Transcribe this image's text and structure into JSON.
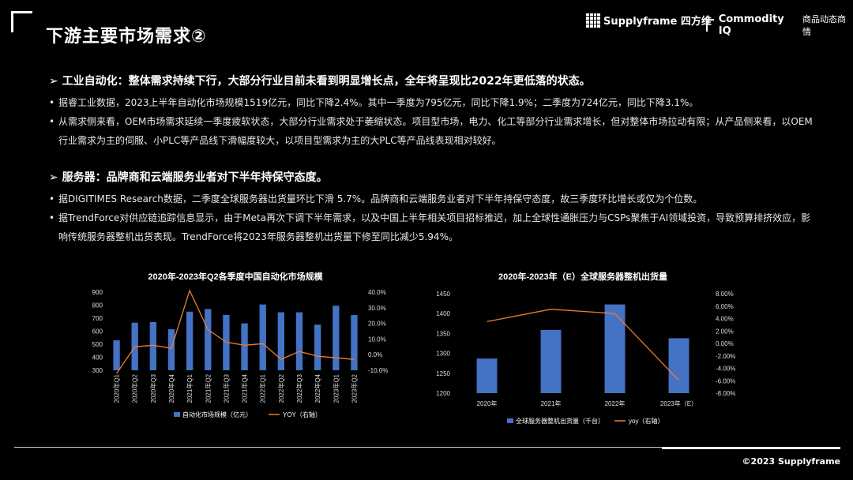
{
  "page": {
    "title": "下游主要市场需求②",
    "brand_supplyframe": "Supplyframe 四方维",
    "brand_commodity": "Commodity IQ",
    "brand_commodity_sub": "商品动态商情",
    "copyright": "©2023 Supplyframe"
  },
  "sections": [
    {
      "heading": "➢  工业自动化：整体需求持续下行，大部分行业目前未看到明显增长点，全年将呈现比2022年更低落的状态。",
      "bullets": [
        "据睿工业数据，2023上半年自动化市场规模1519亿元，同比下降2.4%。其中一季度为795亿元，同比下降1.9%；二季度为724亿元，同比下降3.1%。",
        "从需求侧来看，OEM市场需求延续一季度疲软状态，大部分行业需求处于萎缩状态。项目型市场，电力、化工等部分行业需求增长，但对整体市场拉动有限；从产品侧来看，以OEM行业需求为主的伺服、小PLC等产品线下滑幅度较大，以项目型需求为主的大PLC等产品线表现相对较好。"
      ]
    },
    {
      "heading": "➢  服务器：品牌商和云端服务业者对下半年持保守态度。",
      "bullets": [
        "据DIGITIMES Research数据，二季度全球服务器出货量环比下滑 5.7%。品牌商和云端服务业者对下半年持保守态度，故三季度环比增长或仅为个位数。",
        "据TrendForce对供应链追踪信息显示，由于Meta再次下调下半年需求，以及中国上半年相关项目招标推迟，加上全球性通胀压力与CSPs聚焦于AI领域投资，导致预算排挤效应，影响传统服务器整机出货表现。TrendForce将2023年服务器整机出货量下修至同比减少5.94%。"
      ]
    }
  ],
  "chart_data": [
    {
      "type": "bar",
      "title": "2020年-2023年Q2各季度中国自动化市场规模",
      "categories": [
        "2020年Q1",
        "2020年Q2",
        "2020年Q3",
        "2020年Q4",
        "2021年Q1",
        "2021年Q2",
        "2021年Q3",
        "2021年Q4",
        "2022年Q1",
        "2022年Q2",
        "2022年Q3",
        "2022年Q4",
        "2023年Q1",
        "2023年Q2"
      ],
      "series": [
        {
          "name": "自动化市场规模（亿元）",
          "kind": "bar",
          "axis": "left",
          "color": "#4472C4",
          "values": [
            530,
            665,
            670,
            615,
            750,
            770,
            725,
            660,
            805,
            745,
            745,
            650,
            795,
            724
          ]
        },
        {
          "name": "YOY（右轴）",
          "kind": "line",
          "axis": "right",
          "color": "#ED7D31",
          "values": [
            -12,
            5,
            6,
            4,
            41,
            16,
            8,
            6,
            7,
            -3,
            2,
            -1,
            -2,
            -3.1
          ]
        }
      ],
      "y_left": {
        "min": 300,
        "max": 900,
        "ticks": [
          "300",
          "400",
          "500",
          "600",
          "700",
          "800",
          "900"
        ]
      },
      "y_right": {
        "min": -10,
        "max": 40,
        "ticks": [
          "-10.0%",
          "0.0%",
          "10.0%",
          "20.0%",
          "30.0%",
          "40.0%"
        ]
      },
      "grid": false,
      "legend": "bottom"
    },
    {
      "type": "bar",
      "title": "2020年-2023年（E）全球服务器整机出货量",
      "categories": [
        "2020年",
        "2021年",
        "2022年",
        "2023年（E）"
      ],
      "series": [
        {
          "name": "全球服务器整机出货量（千台）",
          "kind": "bar",
          "axis": "left",
          "color": "#4472C4",
          "values": [
            1287,
            1359,
            1423,
            1338
          ]
        },
        {
          "name": "yoy（右轴）",
          "kind": "line",
          "axis": "right",
          "color": "#ED7D31",
          "values": [
            3.5,
            5.5,
            4.8,
            -5.94
          ]
        }
      ],
      "y_left": {
        "min": 1200,
        "max": 1450,
        "ticks": [
          "1200",
          "1250",
          "1300",
          "1350",
          "1400",
          "1450"
        ]
      },
      "y_right": {
        "min": -8,
        "max": 8,
        "ticks": [
          "-8.00%",
          "-6.00%",
          "-4.00%",
          "-2.00%",
          "0.00%",
          "2.00%",
          "4.00%",
          "6.00%",
          "8.00%"
        ]
      },
      "grid": false,
      "legend": "bottom"
    }
  ]
}
